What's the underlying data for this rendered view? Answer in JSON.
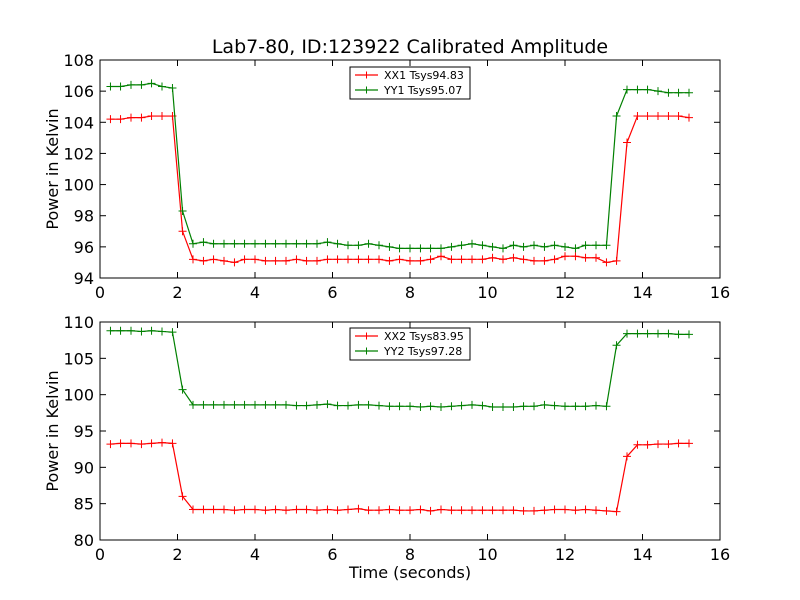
{
  "title": "Lab7-80, ID:123922 Calibrated Amplitude",
  "chart_data": [
    {
      "type": "line",
      "title": "Lab7-80, ID:123922 Calibrated Amplitude",
      "xlabel": "",
      "ylabel": "Power in Kelvin",
      "xlim": [
        0,
        16
      ],
      "ylim": [
        94,
        108
      ],
      "xticks": [
        0,
        2,
        4,
        6,
        8,
        10,
        12,
        14,
        16
      ],
      "yticks": [
        94,
        96,
        98,
        100,
        102,
        104,
        106,
        108
      ],
      "grid": false,
      "legend_position": "top-center",
      "x": [
        0.27,
        0.53,
        0.8,
        1.07,
        1.33,
        1.6,
        1.87,
        2.13,
        2.4,
        2.67,
        2.93,
        3.2,
        3.47,
        3.73,
        4.0,
        4.27,
        4.53,
        4.8,
        5.07,
        5.33,
        5.6,
        5.87,
        6.13,
        6.4,
        6.67,
        6.93,
        7.2,
        7.47,
        7.73,
        8.0,
        8.27,
        8.53,
        8.8,
        9.07,
        9.33,
        9.6,
        9.87,
        10.13,
        10.4,
        10.67,
        10.93,
        11.2,
        11.47,
        11.73,
        12.0,
        12.27,
        12.53,
        12.8,
        13.07,
        13.33,
        13.6,
        13.87,
        14.13,
        14.4,
        14.67,
        14.93,
        15.2
      ],
      "series": [
        {
          "name": "XX1 Tsys94.83",
          "color": "#ff0000",
          "values": [
            104.2,
            104.2,
            104.3,
            104.3,
            104.4,
            104.4,
            104.4,
            97.0,
            95.2,
            95.1,
            95.2,
            95.1,
            95.0,
            95.2,
            95.2,
            95.1,
            95.1,
            95.1,
            95.2,
            95.1,
            95.1,
            95.2,
            95.2,
            95.2,
            95.2,
            95.2,
            95.2,
            95.1,
            95.2,
            95.1,
            95.1,
            95.2,
            95.4,
            95.2,
            95.2,
            95.2,
            95.2,
            95.3,
            95.2,
            95.3,
            95.2,
            95.1,
            95.1,
            95.2,
            95.4,
            95.4,
            95.3,
            95.3,
            95.0,
            95.1,
            102.7,
            104.4,
            104.4,
            104.4,
            104.4,
            104.4,
            104.3
          ]
        },
        {
          "name": "YY1 Tsys95.07",
          "color": "#008000",
          "values": [
            106.3,
            106.3,
            106.4,
            106.4,
            106.5,
            106.3,
            106.2,
            98.3,
            96.2,
            96.3,
            96.2,
            96.2,
            96.2,
            96.2,
            96.2,
            96.2,
            96.2,
            96.2,
            96.2,
            96.2,
            96.2,
            96.3,
            96.2,
            96.1,
            96.1,
            96.2,
            96.1,
            96.0,
            95.9,
            95.9,
            95.9,
            95.9,
            95.9,
            96.0,
            96.1,
            96.2,
            96.1,
            96.0,
            95.9,
            96.1,
            96.0,
            96.1,
            96.0,
            96.1,
            96.0,
            95.9,
            96.1,
            96.1,
            96.1,
            104.4,
            106.1,
            106.1,
            106.1,
            106.0,
            105.9,
            105.9,
            105.9
          ]
        }
      ]
    },
    {
      "type": "line",
      "title": "",
      "xlabel": "Time (seconds)",
      "ylabel": "Power in Kelvin",
      "xlim": [
        0,
        16
      ],
      "ylim": [
        80,
        110
      ],
      "xticks": [
        0,
        2,
        4,
        6,
        8,
        10,
        12,
        14,
        16
      ],
      "yticks": [
        80,
        85,
        90,
        95,
        100,
        105,
        110
      ],
      "grid": false,
      "legend_position": "top-center",
      "x": [
        0.27,
        0.53,
        0.8,
        1.07,
        1.33,
        1.6,
        1.87,
        2.13,
        2.4,
        2.67,
        2.93,
        3.2,
        3.47,
        3.73,
        4.0,
        4.27,
        4.53,
        4.8,
        5.07,
        5.33,
        5.6,
        5.87,
        6.13,
        6.4,
        6.67,
        6.93,
        7.2,
        7.47,
        7.73,
        8.0,
        8.27,
        8.53,
        8.8,
        9.07,
        9.33,
        9.6,
        9.87,
        10.13,
        10.4,
        10.67,
        10.93,
        11.2,
        11.47,
        11.73,
        12.0,
        12.27,
        12.53,
        12.8,
        13.07,
        13.33,
        13.6,
        13.87,
        14.13,
        14.4,
        14.67,
        14.93,
        15.2
      ],
      "series": [
        {
          "name": "XX2 Tsys83.95",
          "color": "#ff0000",
          "values": [
            93.2,
            93.3,
            93.3,
            93.2,
            93.3,
            93.4,
            93.3,
            86.0,
            84.2,
            84.2,
            84.2,
            84.2,
            84.1,
            84.2,
            84.2,
            84.1,
            84.2,
            84.1,
            84.2,
            84.2,
            84.1,
            84.2,
            84.1,
            84.2,
            84.3,
            84.1,
            84.1,
            84.2,
            84.1,
            84.1,
            84.2,
            84.0,
            84.2,
            84.1,
            84.1,
            84.1,
            84.1,
            84.1,
            84.1,
            84.1,
            84.0,
            84.0,
            84.1,
            84.2,
            84.2,
            84.1,
            84.2,
            84.1,
            84.0,
            83.9,
            91.5,
            93.1,
            93.1,
            93.2,
            93.2,
            93.3,
            93.3
          ]
        },
        {
          "name": "YY2 Tsys97.28",
          "color": "#008000",
          "values": [
            108.8,
            108.8,
            108.8,
            108.7,
            108.8,
            108.7,
            108.6,
            100.7,
            98.6,
            98.6,
            98.6,
            98.6,
            98.6,
            98.6,
            98.6,
            98.6,
            98.6,
            98.6,
            98.5,
            98.5,
            98.6,
            98.7,
            98.5,
            98.5,
            98.6,
            98.6,
            98.5,
            98.4,
            98.4,
            98.4,
            98.3,
            98.4,
            98.3,
            98.4,
            98.5,
            98.6,
            98.5,
            98.3,
            98.3,
            98.3,
            98.4,
            98.4,
            98.6,
            98.5,
            98.4,
            98.4,
            98.4,
            98.5,
            98.4,
            106.8,
            108.4,
            108.4,
            108.4,
            108.4,
            108.4,
            108.3,
            108.3
          ]
        }
      ]
    }
  ]
}
